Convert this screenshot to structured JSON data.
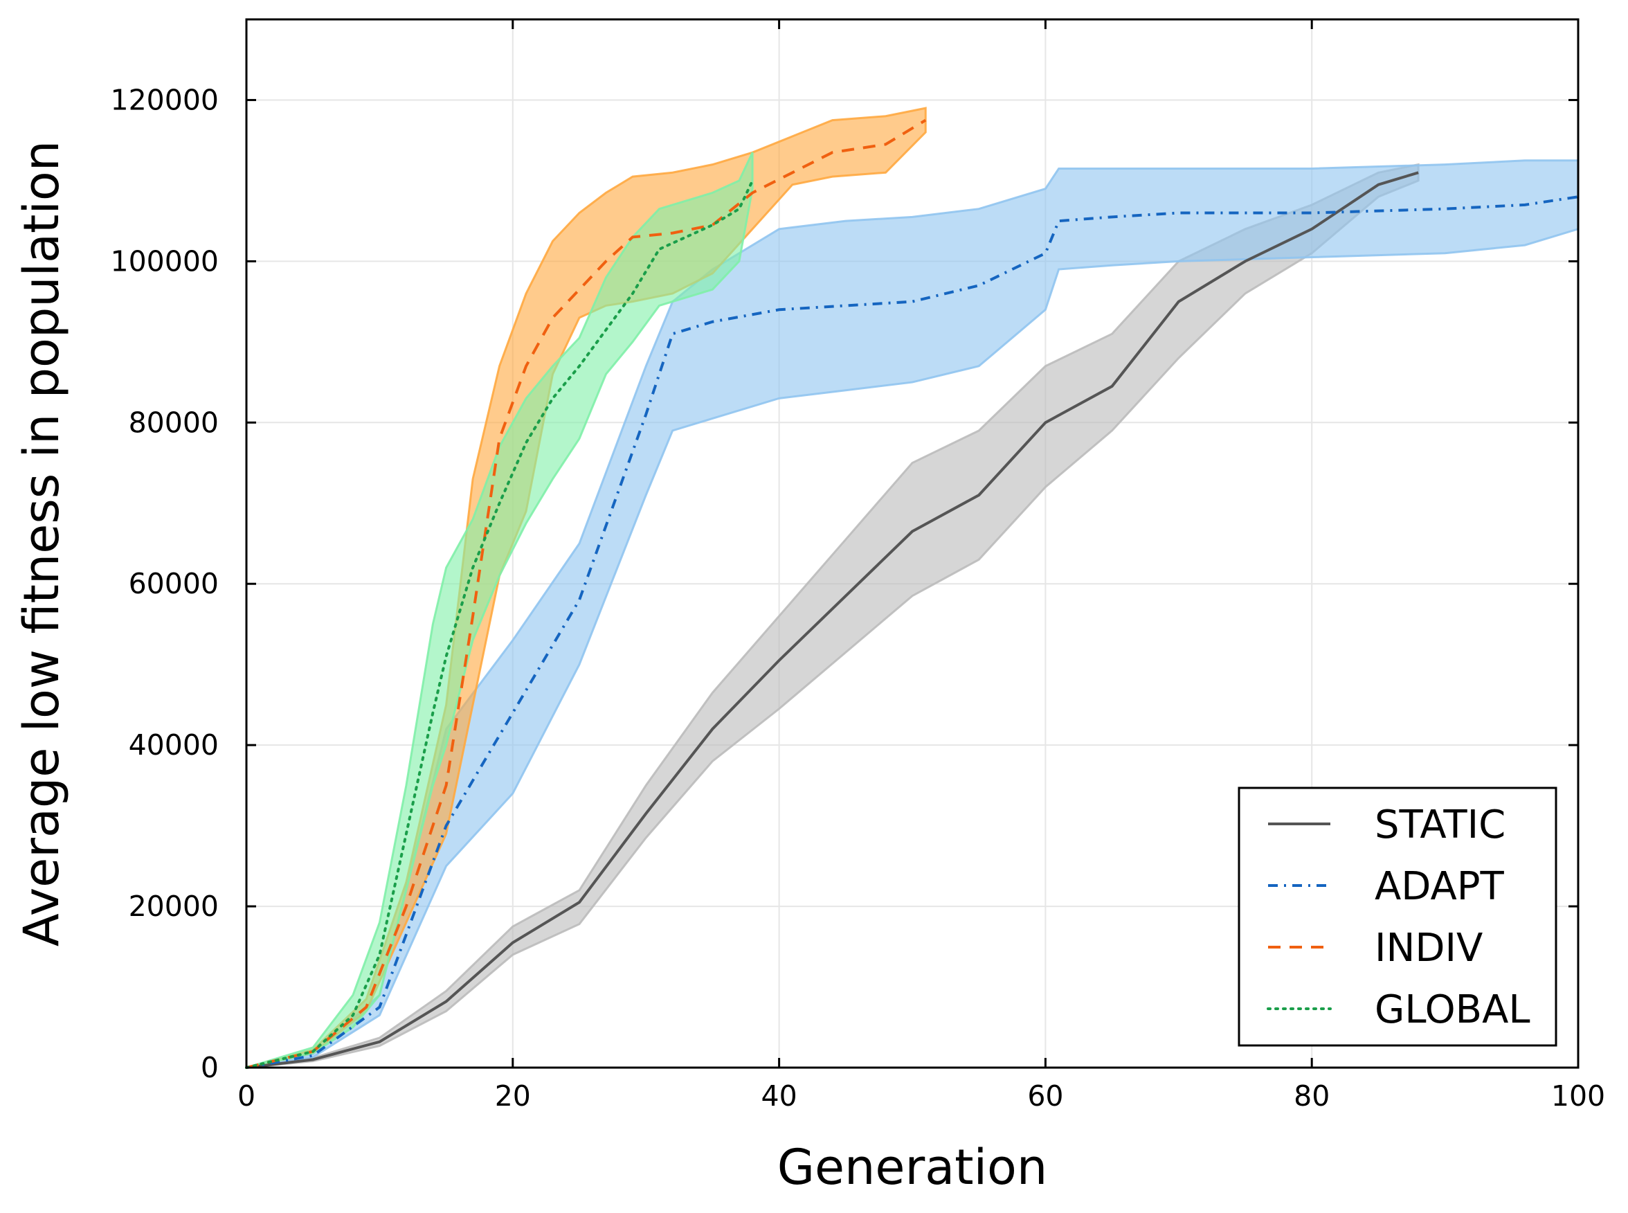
{
  "chart_data": {
    "type": "line",
    "title": "",
    "xlabel": "Generation",
    "ylabel": "Average low fitness in population",
    "xlim": [
      0,
      100
    ],
    "ylim": [
      0,
      130000
    ],
    "xticks": [
      0,
      20,
      40,
      60,
      80,
      100
    ],
    "xtick_labels": [
      "0",
      "20",
      "40",
      "60",
      "80",
      "100"
    ],
    "yticks": [
      0,
      20000,
      40000,
      60000,
      80000,
      100000,
      120000
    ],
    "ytick_labels": [
      "0",
      "20000",
      "40000",
      "60000",
      "80000",
      "100000",
      "120000"
    ],
    "grid": true,
    "legend_position": "bottom-right",
    "series": [
      {
        "name": "STATIC",
        "color": "#555555",
        "fill_color": "#bbbbbb",
        "dash": "solid",
        "x": [
          0,
          5,
          10,
          15,
          20,
          25,
          30,
          35,
          40,
          45,
          50,
          55,
          60,
          65,
          70,
          75,
          80,
          85,
          88
        ],
        "mean": [
          0,
          1000,
          3200,
          8200,
          15500,
          20500,
          31500,
          42000,
          50500,
          58500,
          66500,
          71000,
          80000,
          84500,
          95000,
          100000,
          104000,
          109500,
          111000
        ],
        "lower": [
          0,
          800,
          2700,
          7000,
          14000,
          17800,
          28500,
          38000,
          44500,
          51500,
          58500,
          63000,
          72000,
          79000,
          88000,
          96000,
          101000,
          108000,
          110000
        ],
        "upper": [
          0,
          1200,
          3700,
          9500,
          17500,
          22000,
          35000,
          46500,
          56000,
          65500,
          75000,
          79000,
          87000,
          91000,
          100000,
          104000,
          107000,
          111000,
          112000
        ]
      },
      {
        "name": "ADAPT",
        "color": "#1565c0",
        "fill_color": "#90c4f0",
        "dash": "dashdot",
        "x": [
          0,
          5,
          10,
          15,
          20,
          25,
          30,
          32,
          35,
          40,
          45,
          50,
          55,
          60,
          61,
          65,
          70,
          80,
          90,
          96,
          100
        ],
        "mean": [
          0,
          1500,
          7500,
          30000,
          44000,
          58000,
          81000,
          91000,
          92500,
          94000,
          94500,
          95000,
          97000,
          101000,
          105000,
          105500,
          106000,
          106000,
          106500,
          107000,
          108000
        ],
        "lower": [
          0,
          1300,
          6500,
          25000,
          34000,
          50000,
          71000,
          79000,
          80500,
          83000,
          84000,
          85000,
          87000,
          94000,
          99000,
          99500,
          100000,
          100500,
          101000,
          102000,
          104000
        ],
        "upper": [
          0,
          1700,
          9000,
          42000,
          53000,
          65000,
          87000,
          95000,
          99000,
          104000,
          105000,
          105500,
          106500,
          109000,
          111500,
          111500,
          111500,
          111500,
          112000,
          112500,
          112500
        ]
      },
      {
        "name": "INDIV",
        "color": "#f06010",
        "fill_color": "#ffa840",
        "dash": "dashed",
        "x": [
          0,
          5,
          9,
          12,
          15,
          17,
          19,
          21,
          23,
          25,
          27,
          29,
          32,
          35,
          38,
          41,
          44,
          48,
          51
        ],
        "mean": [
          0,
          2000,
          7500,
          20000,
          35000,
          56000,
          78000,
          87000,
          93000,
          96500,
          100000,
          103000,
          103500,
          104500,
          108500,
          111000,
          113500,
          114500,
          117500
        ],
        "lower": [
          0,
          1800,
          7000,
          18000,
          29000,
          45000,
          61000,
          69000,
          86000,
          93000,
          94500,
          95000,
          96000,
          98500,
          104000,
          109500,
          110500,
          111000,
          116000
        ],
        "upper": [
          0,
          2200,
          8500,
          23000,
          45000,
          73000,
          87000,
          96000,
          102500,
          106000,
          108500,
          110500,
          111000,
          112000,
          113500,
          115500,
          117500,
          118000,
          119000
        ]
      },
      {
        "name": "GLOBAL",
        "color": "#1a9e4a",
        "fill_color": "#80f0a8",
        "dash": "dotted",
        "x": [
          0,
          5,
          8,
          10,
          12,
          14,
          15,
          17,
          19,
          21,
          23,
          25,
          27,
          29,
          31,
          33,
          35,
          37,
          38
        ],
        "mean": [
          0,
          2000,
          6500,
          14000,
          29000,
          44000,
          51000,
          62000,
          70000,
          77500,
          83000,
          87000,
          91500,
          96000,
          101500,
          103000,
          104500,
          106500,
          110000
        ],
        "lower": [
          0,
          1800,
          5000,
          9000,
          22000,
          35000,
          40000,
          53000,
          61000,
          67500,
          73000,
          78000,
          86000,
          90000,
          94500,
          95500,
          96500,
          100000,
          109000
        ],
        "upper": [
          0,
          2500,
          9000,
          18000,
          35000,
          55000,
          62000,
          68000,
          77000,
          83000,
          87000,
          90500,
          98000,
          103000,
          106500,
          107500,
          108500,
          110000,
          113500
        ]
      }
    ]
  }
}
